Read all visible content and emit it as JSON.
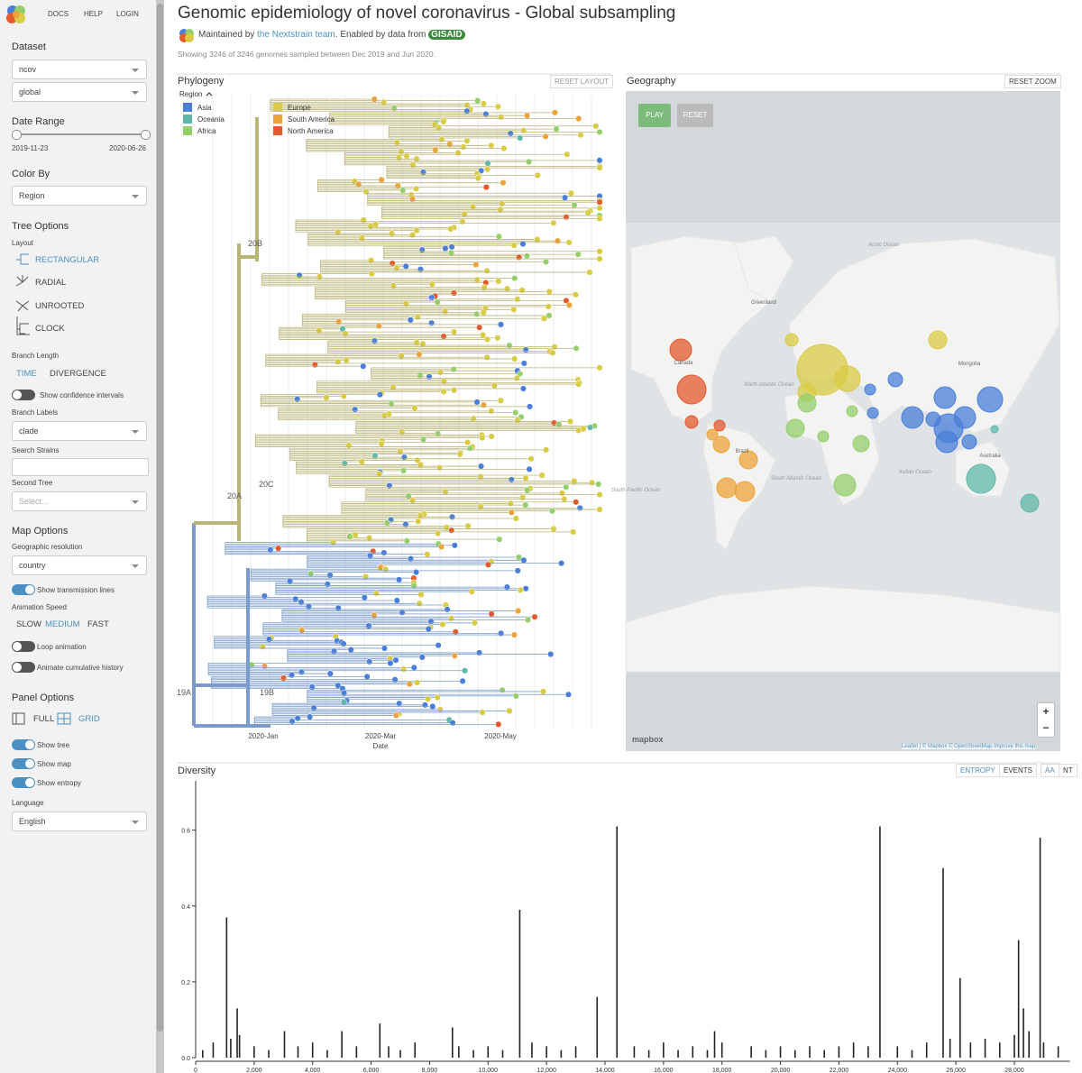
{
  "nav": {
    "docs": "DOCS",
    "help": "HELP",
    "login": "LOGIN"
  },
  "sidebar": {
    "dataset": {
      "label": "Dataset",
      "selects": [
        "ncov",
        "global"
      ]
    },
    "date_range": {
      "label": "Date Range",
      "start": "2019-11-23",
      "end": "2020-06-26"
    },
    "color_by": {
      "label": "Color By",
      "value": "Region"
    },
    "tree_options": {
      "label": "Tree Options",
      "layout_label": "Layout",
      "layouts": [
        "RECTANGULAR",
        "RADIAL",
        "UNROOTED",
        "CLOCK"
      ],
      "branch_length_label": "Branch Length",
      "branch_lengths": [
        "TIME",
        "DIVERGENCE"
      ],
      "confidence": "Show confidence intervals",
      "branch_labels_label": "Branch Labels",
      "branch_labels_value": "clade",
      "search_label": "Search Strains",
      "second_tree_label": "Second Tree",
      "second_tree_placeholder": "Select..."
    },
    "map_options": {
      "label": "Map Options",
      "resolution_label": "Geographic resolution",
      "resolution_value": "country",
      "transmission": "Show transmission lines",
      "speed_label": "Animation Speed",
      "speeds": [
        "SLOW",
        "MEDIUM",
        "FAST"
      ],
      "loop": "Loop animation",
      "cumulative": "Animate cumulative history"
    },
    "panel_options": {
      "label": "Panel Options",
      "layouts": [
        "FULL",
        "GRID"
      ],
      "toggles": [
        "Show tree",
        "Show map",
        "Show entropy"
      ],
      "language_label": "Language",
      "language_value": "English"
    }
  },
  "header": {
    "title": "Genomic epidemiology of novel coronavirus - Global subsampling",
    "byline_1": "Maintained by",
    "team": "the Nextstrain team",
    "byline_2": ". Enabled by data from",
    "gisaid": "GISAID",
    "summary": "Showing 3246 of 3246 genomes sampled between Dec 2019 and Jun 2020."
  },
  "phylogeny": {
    "title": "Phylogeny",
    "reset": "RESET LAYOUT",
    "legend_title": "Region",
    "regions": [
      {
        "name": "Asia",
        "color": "#4a7fd9"
      },
      {
        "name": "Oceania",
        "color": "#5fb8a8"
      },
      {
        "name": "Africa",
        "color": "#94cf6b"
      },
      {
        "name": "Europe",
        "color": "#d9cb44"
      },
      {
        "name": "South America",
        "color": "#eda33a"
      },
      {
        "name": "North America",
        "color": "#e35a2e"
      }
    ],
    "clades": [
      "20B",
      "20C",
      "20A",
      "19B",
      "19A"
    ],
    "xticks": [
      "2020-Jan",
      "2020-Mar",
      "2020-May"
    ],
    "xlabel": "Date"
  },
  "geography": {
    "title": "Geography",
    "reset_zoom": "RESET ZOOM",
    "play": "PLAY",
    "reset": "RESET",
    "labels": [
      "Arctic Ocean",
      "North Atlantic Ocean",
      "South Atlantic Ocean",
      "Indian Ocean",
      "South Pacific Ocean",
      "Greenland",
      "Canada",
      "Mongolia",
      "Brazil",
      "Australia"
    ],
    "zoom": [
      "+",
      "−"
    ],
    "mapbox": "mapbox",
    "attribution": "Leaflet | © Mapbox © OpenStreetMap Improve this map"
  },
  "diversity": {
    "title": "Diversity",
    "buttons": [
      "ENTROPY",
      "EVENTS",
      "AA",
      "NT"
    ],
    "ylim": [
      0,
      0.73
    ],
    "yticks": [
      {
        "value": 0,
        "label": "0.0"
      },
      0.2,
      0.4,
      0.6
    ],
    "xlim": [
      0,
      29903
    ],
    "xticks": [
      0,
      {
        "value": 2000,
        "label": "2,000"
      },
      {
        "value": 4000,
        "label": "4,000"
      },
      {
        "value": 6000,
        "label": "6,000"
      },
      {
        "value": 8000,
        "label": "8,000"
      },
      {
        "value": 10000,
        "label": "10,000"
      },
      {
        "value": 12000,
        "label": "12,000"
      },
      {
        "value": 14000,
        "label": "14,000"
      },
      {
        "value": 16000,
        "label": "16,000"
      },
      {
        "value": 18000,
        "label": "18,000"
      },
      {
        "value": 20000,
        "label": "20,000"
      },
      {
        "value": 22000,
        "label": "22,000"
      },
      {
        "value": 24000,
        "label": "24,000"
      },
      {
        "value": 26000,
        "label": "26,000"
      },
      {
        "value": 28000,
        "label": "28,000"
      }
    ],
    "positions": [
      240,
      600,
      1059,
      1200,
      1420,
      1500,
      2000,
      2500,
      3037,
      3500,
      4000,
      4500,
      5000,
      5500,
      6300,
      6600,
      7000,
      7500,
      8782,
      9000,
      9500,
      10000,
      10500,
      11083,
      11500,
      12000,
      12500,
      13000,
      13730,
      14408,
      15000,
      15500,
      16000,
      16500,
      17000,
      17500,
      17747,
      18000,
      19000,
      19500,
      20000,
      20500,
      21000,
      21500,
      22000,
      22500,
      23000,
      23403,
      24000,
      24500,
      25000,
      25563,
      25800,
      26144,
      26500,
      27000,
      27500,
      28000,
      28144,
      28311,
      28500,
      28881,
      29000,
      29500
    ],
    "values": [
      0.02,
      0.04,
      0.37,
      0.05,
      0.13,
      0.06,
      0.03,
      0.02,
      0.07,
      0.03,
      0.04,
      0.02,
      0.07,
      0.03,
      0.09,
      0.03,
      0.02,
      0.04,
      0.08,
      0.03,
      0.02,
      0.03,
      0.02,
      0.39,
      0.04,
      0.03,
      0.02,
      0.03,
      0.16,
      0.61,
      0.03,
      0.02,
      0.04,
      0.02,
      0.03,
      0.02,
      0.07,
      0.04,
      0.03,
      0.02,
      0.03,
      0.02,
      0.03,
      0.02,
      0.03,
      0.04,
      0.03,
      0.61,
      0.03,
      0.02,
      0.04,
      0.5,
      0.05,
      0.21,
      0.04,
      0.05,
      0.04,
      0.06,
      0.31,
      0.13,
      0.07,
      0.58,
      0.04,
      0.03
    ]
  }
}
